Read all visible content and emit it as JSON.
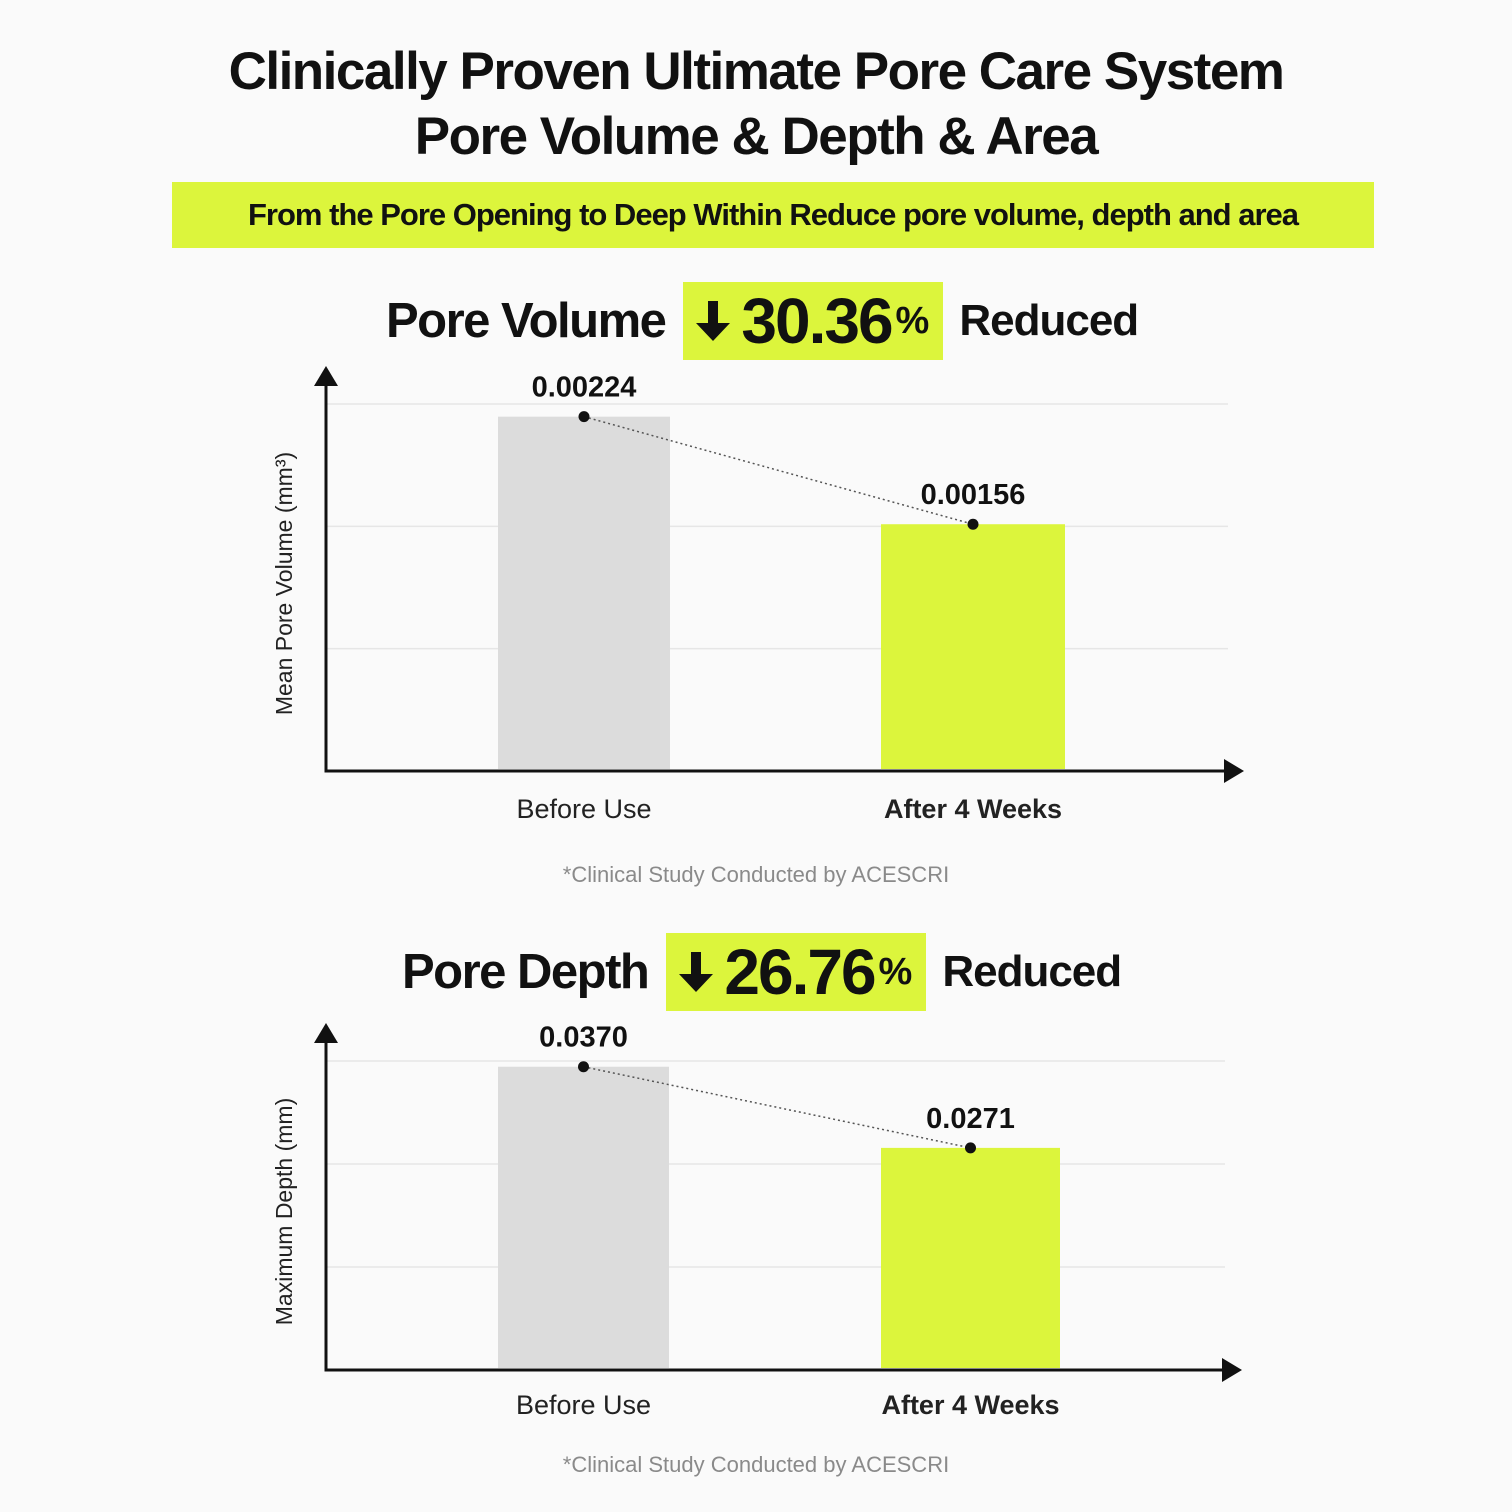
{
  "header": {
    "title_line1": "Clinically Proven Ultimate Pore Care System",
    "title_line2": "Pore Volume & Depth & Area",
    "band_text": "From the Pore Opening to Deep Within Reduce pore volume, depth and area"
  },
  "colors": {
    "accent": "#dcf53c",
    "before_bar": "#dcdcdc",
    "axis": "#111111",
    "grid": "#e6e6e6"
  },
  "sections": [
    {
      "metric": "Pore Volume",
      "percent": "30.36",
      "percent_sign": "%",
      "reduced": "Reduced",
      "footnote": "*Clinical Study Conducted by ACESCRI"
    },
    {
      "metric": "Pore Depth",
      "percent": "26.76",
      "percent_sign": "%",
      "reduced": "Reduced",
      "footnote": "*Clinical Study Conducted by ACESCRI"
    }
  ],
  "chart_data": [
    {
      "type": "bar",
      "title": "",
      "categories": [
        "Before Use",
        "After 4 Weeks"
      ],
      "values": [
        0.00224,
        0.00156
      ],
      "value_labels": [
        "0.00224",
        "0.00156"
      ],
      "xlabel": "",
      "ylabel": "Mean Pore Volume (mm³)",
      "ylim": [
        0,
        0.00232
      ],
      "grid": true,
      "trend_line": "dotted"
    },
    {
      "type": "bar",
      "title": "",
      "categories": [
        "Before Use",
        "After 4 Weeks"
      ],
      "values": [
        0.037,
        0.0271
      ],
      "value_labels": [
        "0.0370",
        "0.0271"
      ],
      "xlabel": "",
      "ylabel": "Maximum Depth (mm)",
      "ylim": [
        0,
        0.0377
      ],
      "grid": true,
      "trend_line": "dotted"
    }
  ]
}
